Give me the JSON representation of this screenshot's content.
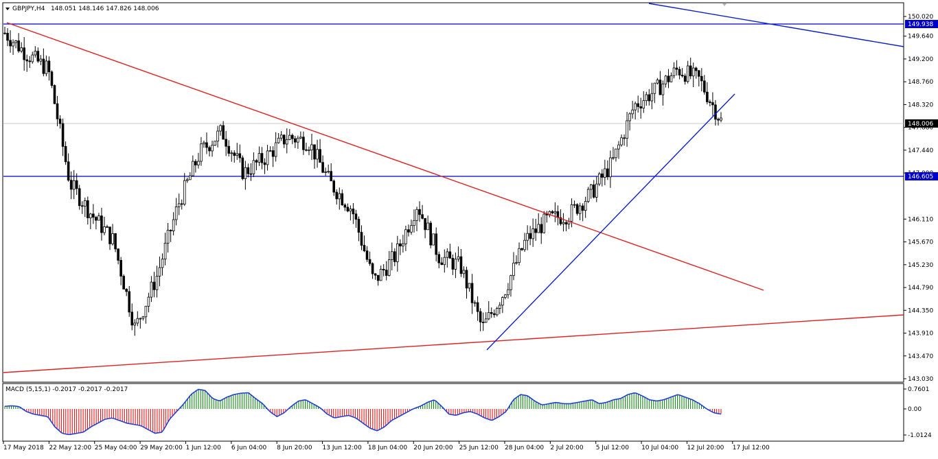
{
  "header": {
    "symbol_timeframe": "GBPJPY,H4",
    "ohlc_text": "148.051 148.146 147.826 148.006"
  },
  "macd": {
    "title": "MACD (5,15,1) -0.2017 -0.2017 -0.2017",
    "ticks": [
      "0.7601",
      "0.00",
      "-1.0124"
    ],
    "ylim": [
      -1.0124,
      0.7601
    ]
  },
  "price_axis": {
    "ticks": [
      "150.020",
      "149.640",
      "149.200",
      "148.760",
      "148.320",
      "147.880",
      "147.440",
      "147.000",
      "146.110",
      "145.670",
      "145.230",
      "144.790",
      "144.350",
      "143.910",
      "143.470",
      "143.030"
    ],
    "current_price_label": "148.006",
    "line_labels": [
      "149.938",
      "146.605"
    ]
  },
  "time_axis": {
    "ticks": [
      "17 May 2018",
      "22 May 12:00",
      "25 May 04:00",
      "29 May 20:00",
      "1 Jun 12:00",
      "6 Jun 04:00",
      "8 Jun 20:00",
      "13 Jun 12:00",
      "18 Jun 04:00",
      "20 Jun 20:00",
      "25 Jun 12:00",
      "28 Jun 04:00",
      "2 Jul 20:00",
      "5 Jul 12:00",
      "10 Jul 04:00",
      "12 Jul 20:00",
      "17 Jul 12:00"
    ]
  },
  "colors": {
    "up_candle": "#ffffff",
    "down_candle": "#000000",
    "horizontal_lines": "#0000cc",
    "trend_red": "#e02020",
    "trend_blue": "#0a1fd0",
    "macd_pos": "#008000",
    "macd_neg": "#ff0000",
    "macd_signal": "#1f3fd8",
    "price_label_bg": "#0000cc",
    "current_label_bg": "#000000"
  },
  "chart_data": {
    "type": "candlestick",
    "symbol": "GBPJPY",
    "timeframe": "H4",
    "ylim": [
      143.03,
      150.24
    ],
    "close_path": [
      {
        "t": "17 May 2018",
        "close": 149.7
      },
      {
        "t": "18 May",
        "close": 149.3
      },
      {
        "t": "21 May",
        "close": 149.0
      },
      {
        "t": "22 May 12:00",
        "close": 146.8
      },
      {
        "t": "24 May",
        "close": 146.2
      },
      {
        "t": "25 May 04:00",
        "close": 145.7
      },
      {
        "t": "28 May",
        "close": 144.0
      },
      {
        "t": "29 May 20:00",
        "close": 145.0
      },
      {
        "t": "1 Jun 12:00",
        "close": 146.4
      },
      {
        "t": "5 Jun",
        "close": 147.4
      },
      {
        "t": "6 Jun 04:00",
        "close": 147.8
      },
      {
        "t": "7 Jun",
        "close": 147.0
      },
      {
        "t": "8 Jun 20:00",
        "close": 147.3
      },
      {
        "t": "12 Jun",
        "close": 147.7
      },
      {
        "t": "13 Jun 12:00",
        "close": 147.6
      },
      {
        "t": "14 Jun",
        "close": 146.8
      },
      {
        "t": "18 Jun 04:00",
        "close": 146.3
      },
      {
        "t": "19 Jun",
        "close": 144.9
      },
      {
        "t": "20 Jun 20:00",
        "close": 145.4
      },
      {
        "t": "22 Jun",
        "close": 146.4
      },
      {
        "t": "25 Jun 12:00",
        "close": 145.4
      },
      {
        "t": "27 Jun",
        "close": 145.2
      },
      {
        "t": "28 Jun 04:00",
        "close": 144.0
      },
      {
        "t": "29 Jun",
        "close": 144.7
      },
      {
        "t": "2 Jul 20:00",
        "close": 145.7
      },
      {
        "t": "4 Jul",
        "close": 146.1
      },
      {
        "t": "5 Jul 12:00",
        "close": 146.2
      },
      {
        "t": "6 Jul",
        "close": 146.6
      },
      {
        "t": "10 Jul 04:00",
        "close": 147.2
      },
      {
        "t": "11 Jul",
        "close": 148.3
      },
      {
        "t": "12 Jul 20:00",
        "close": 148.6
      },
      {
        "t": "13 Jul",
        "close": 149.0
      },
      {
        "t": "16 Jul",
        "close": 148.8
      },
      {
        "t": "17 Jul 12:00",
        "close": 148.006
      }
    ],
    "horizontal_lines": [
      149.938,
      146.605
    ],
    "macd_histogram_shape": [
      0.1,
      0.12,
      0.09,
      -0.1,
      -0.2,
      -0.25,
      -0.3,
      -0.7,
      -0.95,
      -1.0,
      -0.95,
      -0.9,
      -0.7,
      -0.55,
      -0.4,
      -0.35,
      -0.45,
      -0.55,
      -0.6,
      -0.65,
      -0.8,
      -0.95,
      -0.9,
      -0.4,
      -0.1,
      0.2,
      0.55,
      0.75,
      0.7,
      0.4,
      0.3,
      0.45,
      0.55,
      0.6,
      0.62,
      0.4,
      0.2,
      -0.1,
      -0.3,
      -0.15,
      0.1,
      0.3,
      0.35,
      0.2,
      0.05,
      -0.2,
      -0.35,
      -0.3,
      -0.25,
      -0.35,
      -0.55,
      -0.75,
      -0.85,
      -0.7,
      -0.45,
      -0.3,
      -0.15,
      0.0,
      0.1,
      0.25,
      0.35,
      0.1,
      -0.2,
      -0.25,
      -0.15,
      -0.1,
      -0.2,
      -0.35,
      -0.45,
      -0.3,
      -0.1,
      0.35,
      0.55,
      0.5,
      0.3,
      0.15,
      0.2,
      0.25,
      0.2,
      0.2,
      0.25,
      0.3,
      0.35,
      0.2,
      0.25,
      0.35,
      0.4,
      0.55,
      0.62,
      0.5,
      0.35,
      0.3,
      0.35,
      0.45,
      0.55,
      0.45,
      0.35,
      0.2,
      0.0,
      -0.15,
      -0.2
    ]
  }
}
